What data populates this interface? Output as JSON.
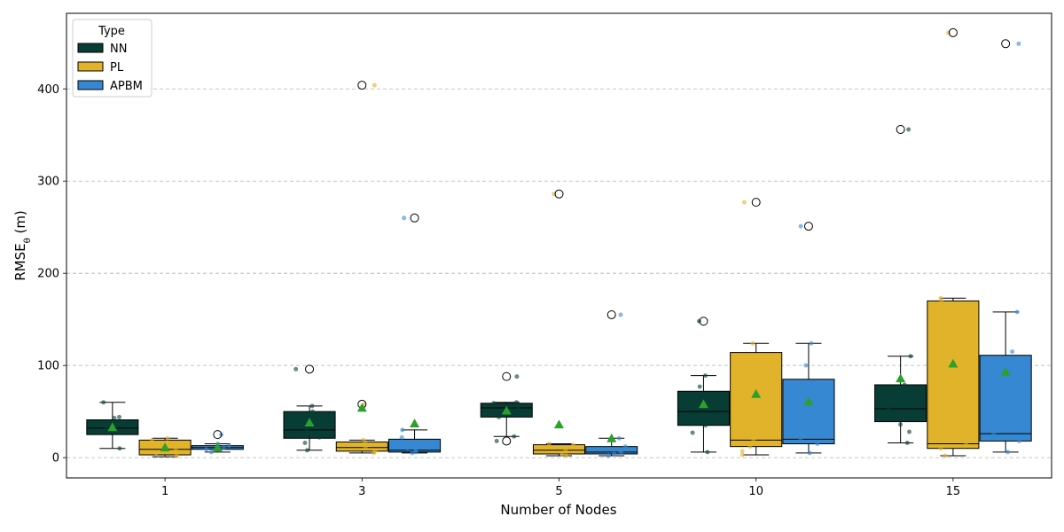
{
  "chart_data": {
    "type": "box",
    "xlabel": "Number of Nodes",
    "ylabel_main": "RMSE",
    "ylabel_sub": "θ",
    "ylabel_unit": " (m)",
    "ylim": [
      -22,
      482
    ],
    "yticks": [
      0,
      100,
      200,
      300,
      400
    ],
    "grid": "y-dashed",
    "categories": [
      "1",
      "3",
      "5",
      "10",
      "15"
    ],
    "legend": {
      "title": "Type",
      "position": "top-left"
    },
    "series": [
      {
        "name": "NN",
        "color": "#073d35",
        "boxes": [
          {
            "q1": 25,
            "median": 32,
            "q3": 41,
            "whisker_low": 10,
            "whisker_high": 60,
            "mean": 33,
            "outliers": [],
            "points": [
              60,
              44,
              43,
              38,
              33,
              28,
              10
            ]
          },
          {
            "q1": 21,
            "median": 30,
            "q3": 50,
            "whisker_low": 8,
            "whisker_high": 56,
            "mean": 38,
            "outliers": [
              96
            ],
            "points": [
              96,
              56,
              50,
              30,
              22,
              16,
              8
            ]
          },
          {
            "q1": 44,
            "median": 54,
            "q3": 59,
            "whisker_low": 23,
            "whisker_high": 60,
            "mean": 51,
            "outliers": [
              88,
              18
            ],
            "points": [
              88,
              60,
              59,
              56,
              54,
              44,
              23,
              18
            ]
          },
          {
            "q1": 35,
            "median": 50,
            "q3": 72,
            "whisker_low": 6,
            "whisker_high": 89,
            "mean": 58,
            "outliers": [
              148
            ],
            "points": [
              148,
              89,
              77,
              65,
              35,
              27,
              6
            ]
          },
          {
            "q1": 39,
            "median": 53,
            "q3": 79,
            "whisker_low": 16,
            "whisker_high": 110,
            "mean": 86,
            "outliers": [
              356
            ],
            "points": [
              356,
              110,
              79,
              53,
              36,
              28,
              16
            ]
          }
        ]
      },
      {
        "name": "PL",
        "color": "#e1b32a",
        "boxes": [
          {
            "q1": 3,
            "median": 9,
            "q3": 19,
            "whisker_low": 1,
            "whisker_high": 21,
            "mean": 11,
            "outliers": [],
            "points": [
              21,
              19,
              13,
              9,
              5,
              2
            ]
          },
          {
            "q1": 7,
            "median": 11,
            "q3": 17,
            "whisker_low": 5,
            "whisker_high": 19,
            "mean": 54,
            "outliers": [
              404,
              58
            ],
            "points": [
              404,
              58,
              19,
              15,
              11,
              7,
              5
            ]
          },
          {
            "q1": 4,
            "median": 8,
            "q3": 14,
            "whisker_low": 2,
            "whisker_high": 15,
            "mean": 36,
            "outliers": [
              286
            ],
            "points": [
              286,
              15,
              14,
              11,
              8,
              4,
              2
            ]
          },
          {
            "q1": 12,
            "median": 19,
            "q3": 114,
            "whisker_low": 3,
            "whisker_high": 124,
            "mean": 69,
            "outliers": [
              277
            ],
            "points": [
              277,
              124,
              97,
              19,
              12,
              7,
              3
            ]
          },
          {
            "q1": 10,
            "median": 15,
            "q3": 170,
            "whisker_low": 2,
            "whisker_high": 173,
            "mean": 102,
            "outliers": [
              461
            ],
            "points": [
              461,
              173,
              170,
              15,
              10,
              2
            ]
          }
        ]
      },
      {
        "name": "APBM",
        "color": "#3588d1",
        "boxes": [
          {
            "q1": 9,
            "median": 11,
            "q3": 13,
            "whisker_low": 6,
            "whisker_high": 15,
            "mean": 11,
            "outliers": [
              25
            ],
            "points": [
              25,
              15,
              13,
              11,
              9,
              6
            ]
          },
          {
            "q1": 6,
            "median": 8,
            "q3": 20,
            "whisker_low": 5,
            "whisker_high": 30,
            "mean": 37,
            "outliers": [
              260
            ],
            "points": [
              260,
              30,
              22,
              10,
              8,
              6,
              5
            ]
          },
          {
            "q1": 4,
            "median": 6,
            "q3": 12,
            "whisker_low": 2,
            "whisker_high": 21,
            "mean": 21,
            "outliers": [
              155
            ],
            "points": [
              155,
              21,
              12,
              8,
              6,
              4,
              2
            ]
          },
          {
            "q1": 15,
            "median": 20,
            "q3": 85,
            "whisker_low": 5,
            "whisker_high": 124,
            "mean": 61,
            "outliers": [
              251
            ],
            "points": [
              251,
              124,
              100,
              20,
              15,
              5
            ]
          },
          {
            "q1": 18,
            "median": 26,
            "q3": 111,
            "whisker_low": 6,
            "whisker_high": 158,
            "mean": 93,
            "outliers": [
              449
            ],
            "points": [
              449,
              158,
              115,
              26,
              18,
              6
            ]
          }
        ]
      }
    ],
    "mean_marker_color": "#2ca02c"
  }
}
